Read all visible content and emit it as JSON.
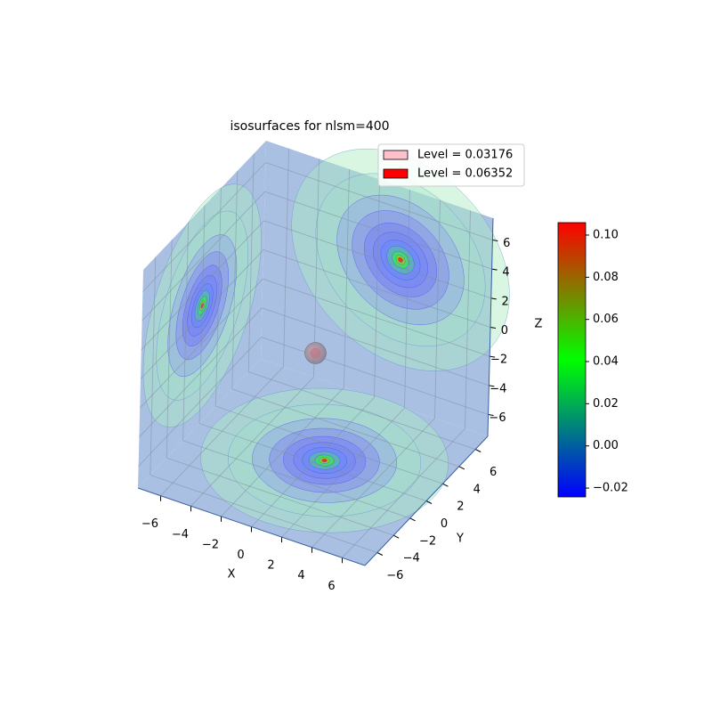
{
  "chart_data": {
    "type": "isosurface3d",
    "title": "isosurfaces for nlsm=400",
    "xlabel": "X",
    "ylabel": "Y",
    "zlabel": "Z",
    "xlim": [
      -7.5,
      7.5
    ],
    "ylim": [
      -7.5,
      7.5
    ],
    "zlim": [
      -7.5,
      7.5
    ],
    "xticks": [
      {
        "value": -6,
        "label": "−6"
      },
      {
        "value": -4,
        "label": "−4"
      },
      {
        "value": -2,
        "label": "−2"
      },
      0,
      2,
      4,
      6
    ],
    "yticks": [
      {
        "value": -6,
        "label": "−6"
      },
      {
        "value": -4,
        "label": "−4"
      },
      {
        "value": -2,
        "label": "−2"
      },
      0,
      2,
      4,
      6
    ],
    "zticks": [
      {
        "value": -6,
        "label": "−6"
      },
      {
        "value": -4,
        "label": "−4"
      },
      {
        "value": -2,
        "label": "−2"
      },
      0,
      2,
      4,
      6
    ],
    "grid": true,
    "legend": "upper right",
    "series": [
      {
        "name": "Level = 0.03176",
        "color": "#ffc0cb"
      },
      {
        "name": "Level = 0.06352",
        "color": "#ff0000"
      }
    ],
    "colorbar": {
      "clim": [
        -0.0242,
        0.1059
      ],
      "colors": [
        "#0000ff",
        "#00ff00",
        "#ff0000"
      ],
      "ticks": [
        {
          "value": -0.02,
          "label": "−0.02"
        },
        {
          "value": 0,
          "label": "0.00"
        },
        {
          "value": 0.02,
          "label": "0.02"
        },
        {
          "value": 0.04,
          "label": "0.04"
        },
        {
          "value": 0.06,
          "label": "0.06"
        },
        {
          "value": 0.08,
          "label": "0.08"
        },
        {
          "value": 0.1,
          "label": "0.10"
        }
      ]
    }
  }
}
